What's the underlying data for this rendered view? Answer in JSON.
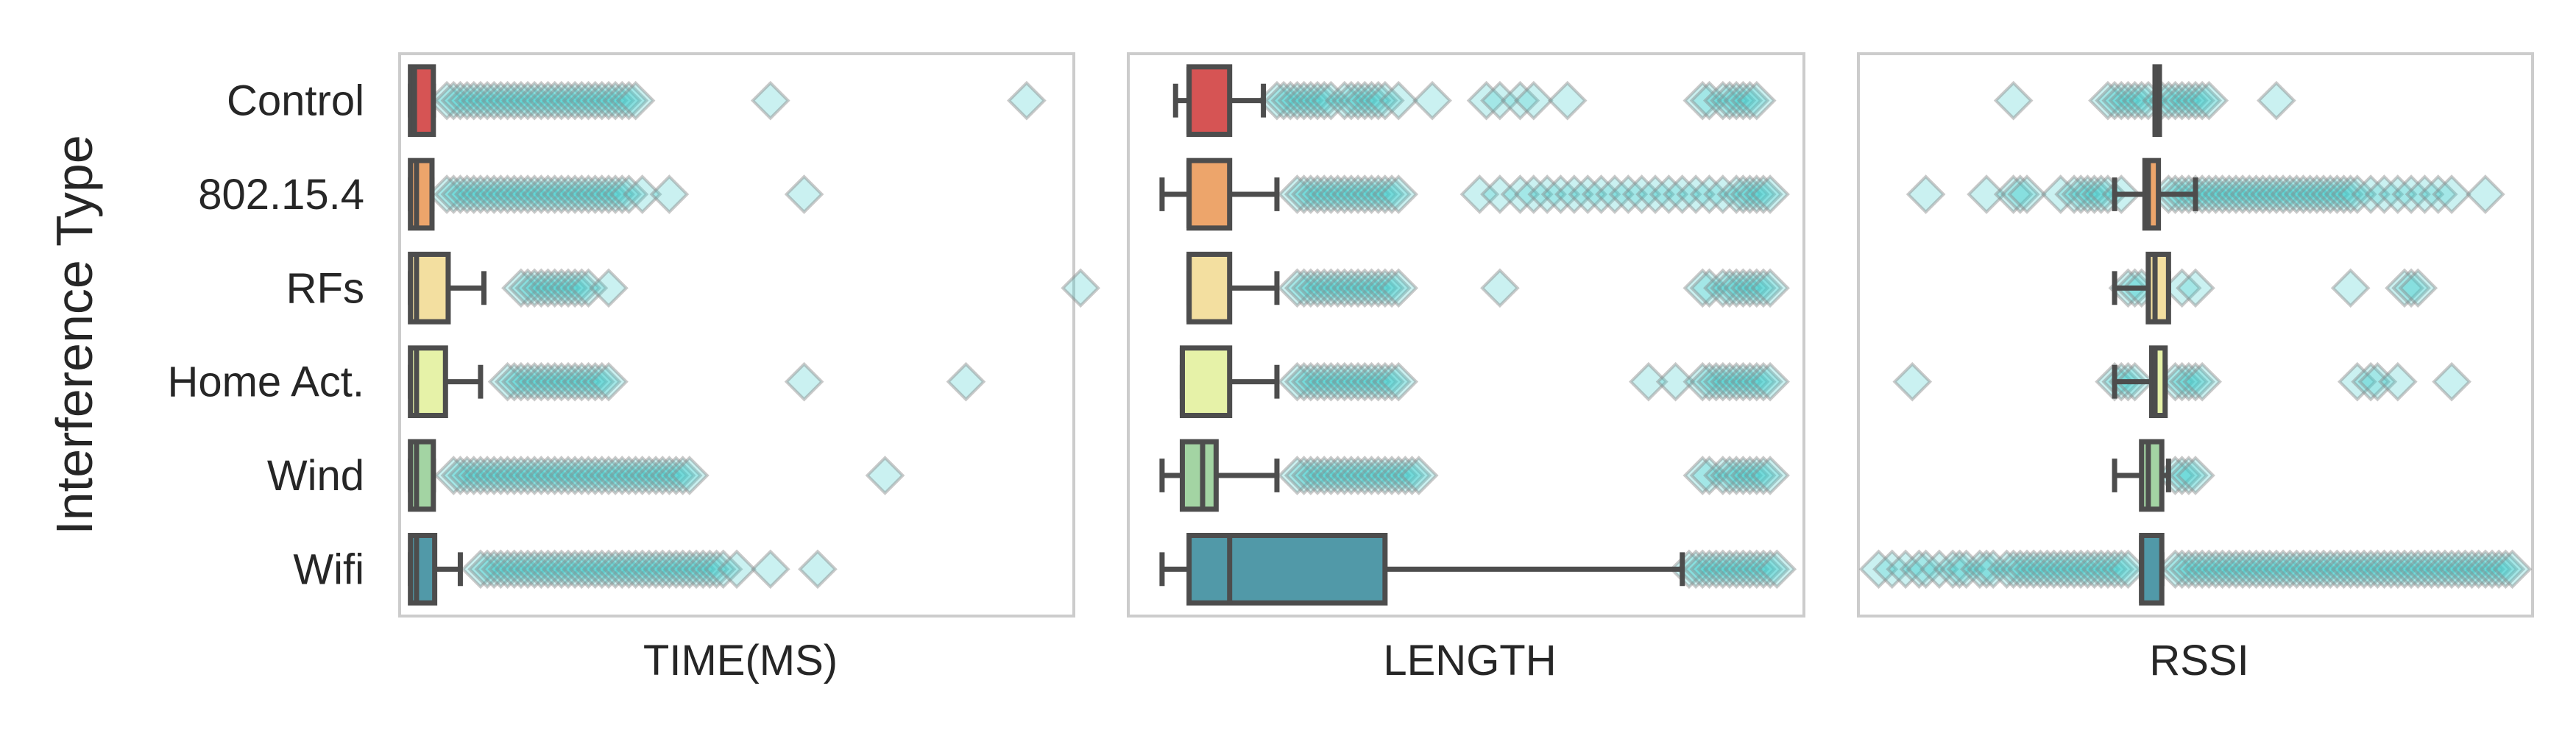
{
  "chart_data": {
    "type": "boxplot",
    "ylabel": "Interference Type",
    "categories": [
      "Control",
      "802.15.4",
      "RFs",
      "Home Act.",
      "Wind",
      "Wifi"
    ],
    "box_colors": [
      "#d65454",
      "#eda56b",
      "#f3dfa0",
      "#e6f2a8",
      "#a3d4a3",
      "#5199a8"
    ],
    "outlier_color": "#40cccc",
    "grid": false,
    "panels": [
      {
        "xlabel": "TIME(MS)",
        "xlim": [
          0,
          100
        ],
        "boxes": [
          {
            "whislo": 1.6,
            "q1": 1.6,
            "med": 2.2,
            "q3": 5.0,
            "whishi": 5.0,
            "fliers": [
              7,
              8,
              9,
              10,
              11,
              12,
              13,
              14,
              15,
              16,
              17,
              18,
              19,
              20,
              21,
              22,
              23,
              24,
              25,
              26,
              27,
              28,
              29,
              30,
              31,
              32,
              33,
              34,
              35,
              55,
              93
            ]
          },
          {
            "whislo": 1.6,
            "q1": 1.6,
            "med": 2.5,
            "q3": 4.8,
            "whishi": 4.8,
            "fliers": [
              7,
              8,
              9,
              10,
              11,
              12,
              13,
              14,
              15,
              16,
              17,
              18,
              19,
              20,
              21,
              22,
              23,
              24,
              25,
              26,
              27,
              28,
              29,
              30,
              31,
              32,
              33,
              34,
              36,
              40,
              60
            ]
          },
          {
            "whislo": 1.6,
            "q1": 1.6,
            "med": 2.5,
            "q3": 7.2,
            "whishi": 12.5,
            "fliers": [
              18,
              19,
              20,
              21,
              22,
              23,
              24,
              25,
              26,
              27,
              28,
              31,
              101
            ]
          },
          {
            "whislo": 1.6,
            "q1": 1.6,
            "med": 2.5,
            "q3": 6.8,
            "whishi": 12.0,
            "fliers": [
              16,
              17,
              18,
              19,
              20,
              21,
              22,
              23,
              24,
              25,
              26,
              27,
              28,
              29,
              30,
              31,
              60,
              84
            ]
          },
          {
            "whislo": 1.6,
            "q1": 1.6,
            "med": 2.5,
            "q3": 5.0,
            "whishi": 5.0,
            "fliers": [
              8,
              9,
              10,
              11,
              12,
              13,
              14,
              15,
              16,
              17,
              18,
              19,
              20,
              21,
              22,
              23,
              24,
              25,
              26,
              27,
              28,
              29,
              30,
              31,
              32,
              33,
              34,
              35,
              36,
              37,
              38,
              39,
              40,
              41,
              42,
              43,
              72
            ]
          },
          {
            "whislo": 1.6,
            "q1": 1.6,
            "med": 2.5,
            "q3": 5.2,
            "whishi": 9.0,
            "fliers": [
              12,
              13,
              14,
              15,
              16,
              17,
              18,
              19,
              20,
              21,
              22,
              23,
              24,
              25,
              26,
              27,
              28,
              29,
              30,
              31,
              32,
              33,
              34,
              35,
              36,
              37,
              38,
              39,
              40,
              41,
              42,
              43,
              44,
              45,
              46,
              47,
              48,
              50,
              55,
              62
            ]
          }
        ]
      },
      {
        "xlabel": "LENGTH",
        "xlim": [
          0,
          100
        ],
        "boxes": [
          {
            "whislo": 7.0,
            "q1": 9.0,
            "med": 9.0,
            "q3": 15.0,
            "whishi": 20.0,
            "fliers": [
              22,
              23,
              24,
              25,
              26,
              27,
              28,
              29,
              30,
              32,
              33,
              34,
              35,
              36,
              37,
              38,
              40,
              45,
              53,
              55,
              58,
              60,
              65,
              85,
              86,
              88,
              89,
              90,
              91,
              92,
              93
            ]
          },
          {
            "whislo": 5.0,
            "q1": 9.0,
            "med": 9.0,
            "q3": 15.0,
            "whishi": 22.0,
            "fliers": [
              25,
              26,
              27,
              28,
              29,
              30,
              31,
              32,
              33,
              34,
              35,
              36,
              37,
              38,
              39,
              40,
              52,
              55,
              58,
              60,
              62,
              64,
              66,
              68,
              70,
              72,
              74,
              76,
              78,
              80,
              82,
              84,
              86,
              88,
              90,
              91,
              92,
              93,
              94,
              95
            ]
          },
          {
            "whislo": 9.0,
            "q1": 9.0,
            "med": 9.0,
            "q3": 15.0,
            "whishi": 22.0,
            "fliers": [
              25,
              26,
              27,
              28,
              29,
              30,
              31,
              32,
              33,
              34,
              35,
              36,
              37,
              38,
              39,
              40,
              55,
              85,
              86,
              88,
              89,
              90,
              91,
              92,
              93,
              94,
              95
            ]
          },
          {
            "whislo": 8.0,
            "q1": 8.0,
            "med": 8.0,
            "q3": 15.0,
            "whishi": 22.0,
            "fliers": [
              25,
              26,
              27,
              28,
              29,
              30,
              31,
              32,
              33,
              34,
              35,
              36,
              37,
              38,
              39,
              40,
              77,
              81,
              85,
              86,
              87,
              88,
              89,
              90,
              91,
              92,
              93,
              94,
              95
            ]
          },
          {
            "whislo": 5.0,
            "q1": 8.0,
            "med": 11.0,
            "q3": 13.0,
            "whishi": 22.0,
            "fliers": [
              25,
              26,
              27,
              28,
              29,
              30,
              31,
              32,
              33,
              34,
              35,
              36,
              37,
              38,
              39,
              40,
              41,
              42,
              43,
              85,
              86,
              88,
              89,
              90,
              91,
              92,
              93,
              94,
              95
            ]
          },
          {
            "whislo": 5.0,
            "q1": 9.0,
            "med": 15.0,
            "q3": 38.0,
            "whishi": 82.0,
            "fliers": [
              83,
              84,
              85,
              86,
              87,
              88,
              89,
              90,
              91,
              92,
              93,
              94,
              95,
              96
            ]
          }
        ]
      },
      {
        "xlabel": "RSSI",
        "xlim": [
          0,
          100
        ],
        "boxes": [
          {
            "whislo": 44.0,
            "q1": 44.0,
            "med": 44.0,
            "q3": 44.0,
            "whishi": 44.0,
            "fliers": [
              23,
              37,
              38,
              39,
              40,
              41,
              42,
              43,
              45,
              46,
              47,
              48,
              49,
              50,
              51,
              52,
              62
            ]
          },
          {
            "whislo": 38.0,
            "q1": 42.5,
            "med": 43.0,
            "q3": 44.5,
            "whishi": 50.0,
            "fliers": [
              10,
              19,
              23,
              24,
              25,
              30,
              32,
              33,
              34,
              35,
              36,
              37,
              39,
              46,
              47,
              48,
              49,
              50,
              51,
              52,
              53,
              54,
              55,
              56,
              57,
              58,
              59,
              60,
              61,
              62,
              63,
              64,
              65,
              66,
              67,
              68,
              69,
              70,
              71,
              72,
              73,
              74,
              76,
              78,
              80,
              82,
              84,
              86,
              88,
              93
            ]
          },
          {
            "whislo": 38.0,
            "q1": 43.0,
            "med": 44.0,
            "q3": 46.0,
            "whishi": 46.0,
            "fliers": [
              40,
              41,
              42,
              48,
              50,
              73,
              81,
              82,
              83
            ]
          },
          {
            "whislo": 38.0,
            "q1": 43.5,
            "med": 44.0,
            "q3": 45.5,
            "whishi": 45.5,
            "fliers": [
              8,
              38,
              39,
              40,
              41,
              47,
              48,
              49,
              50,
              51,
              74,
              76,
              77,
              80,
              88
            ]
          },
          {
            "whislo": 38.0,
            "q1": 42.0,
            "med": 43.0,
            "q3": 45.0,
            "whishi": 46.0,
            "fliers": [
              47,
              48,
              49,
              50
            ]
          },
          {
            "whislo": 42.0,
            "q1": 42.0,
            "med": 42.0,
            "q3": 45.0,
            "whishi": 45.0,
            "fliers": [
              3,
              5,
              7,
              9,
              10,
              12,
              14,
              15,
              16,
              18,
              19,
              20,
              22,
              23,
              24,
              25,
              26,
              27,
              28,
              29,
              30,
              31,
              32,
              33,
              34,
              35,
              36,
              37,
              38,
              39,
              40,
              47,
              48,
              49,
              50,
              51,
              52,
              53,
              54,
              55,
              56,
              57,
              58,
              59,
              60,
              61,
              62,
              63,
              64,
              65,
              66,
              67,
              68,
              69,
              70,
              71,
              72,
              73,
              74,
              75,
              76,
              77,
              78,
              79,
              80,
              81,
              82,
              83,
              84,
              85,
              86,
              87,
              88,
              89,
              90,
              91,
              92,
              93,
              94,
              95,
              96,
              97
            ]
          }
        ]
      }
    ]
  }
}
